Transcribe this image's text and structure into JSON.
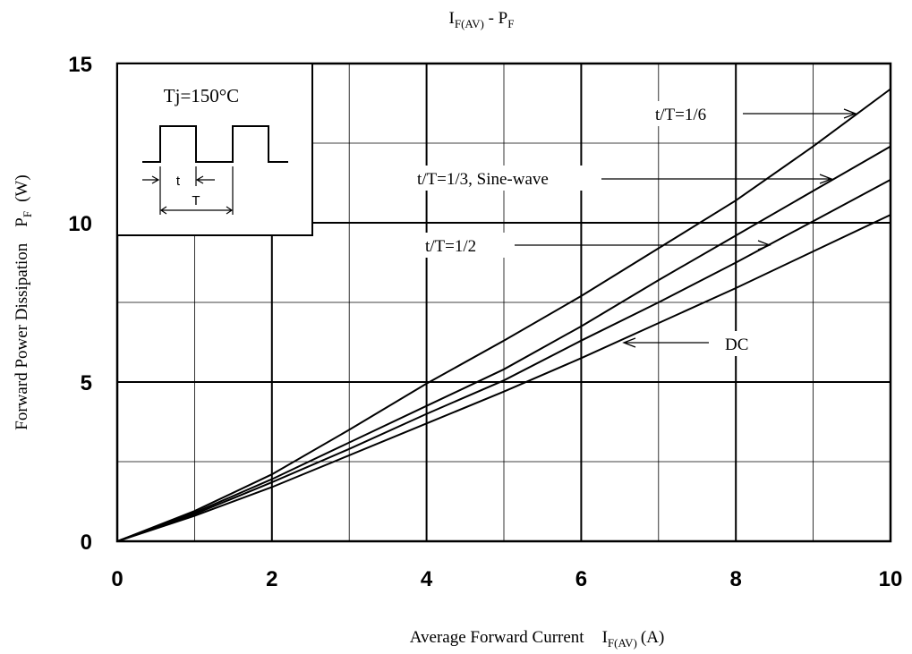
{
  "chart_data": {
    "type": "line",
    "title": {
      "main": "I",
      "main_sub": "F(AV)",
      "sep": " - ",
      "second": "P",
      "second_sub": "F"
    },
    "xlabel": {
      "text": "Average Forward Current",
      "sym": "I",
      "sub": "F(AV)",
      "unit": "(A)"
    },
    "ylabel": {
      "text": "Forward Power Dissipation",
      "sym": "P",
      "sub": "F",
      "unit": "(W)"
    },
    "xlim": [
      0,
      10
    ],
    "ylim": [
      0,
      15
    ],
    "x_ticks": [
      "0",
      "2",
      "4",
      "6",
      "8",
      "10"
    ],
    "y_ticks": [
      "0",
      "5",
      "10",
      "15"
    ],
    "grid": true,
    "series": [
      {
        "name": "t/T=1/6",
        "x": [
          0,
          1,
          2,
          3,
          4,
          5,
          6,
          7,
          8,
          9,
          10
        ],
        "y": [
          0,
          0.95,
          2.1,
          3.5,
          4.95,
          6.3,
          7.7,
          9.2,
          10.7,
          12.4,
          14.2
        ]
      },
      {
        "name": "t/T=1/3, Sine-wave",
        "x": [
          0,
          1,
          2,
          3,
          4,
          5,
          6,
          7,
          8,
          9,
          10
        ],
        "y": [
          0,
          0.9,
          1.95,
          3.1,
          4.25,
          5.4,
          6.75,
          8.2,
          9.6,
          11.0,
          12.4
        ]
      },
      {
        "name": "t/T=1/2",
        "x": [
          0,
          1,
          2,
          3,
          4,
          5,
          6,
          7,
          8,
          9,
          10
        ],
        "y": [
          0,
          0.85,
          1.85,
          2.9,
          4.0,
          5.05,
          6.3,
          7.5,
          8.75,
          10.05,
          11.35
        ]
      },
      {
        "name": "DC",
        "x": [
          0,
          1,
          2,
          3,
          4,
          5,
          6,
          7,
          8,
          9,
          10
        ],
        "y": [
          0,
          0.8,
          1.7,
          2.7,
          3.7,
          4.7,
          5.75,
          6.85,
          7.95,
          9.1,
          10.25
        ]
      }
    ],
    "annotations": [
      {
        "text": "t/T=1/6",
        "series": "t/T=1/6"
      },
      {
        "text": "t/T=1/3, Sine-wave",
        "series": "t/T=1/3, Sine-wave"
      },
      {
        "text": "t/T=1/2",
        "series": "t/T=1/2"
      },
      {
        "text": "DC",
        "series": "DC"
      }
    ],
    "inset": {
      "condition": "Tj=150°C",
      "label_t": "t",
      "label_T": "T"
    }
  }
}
